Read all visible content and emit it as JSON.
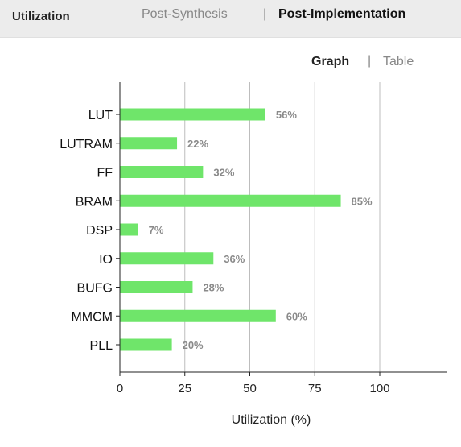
{
  "panel": {
    "title": "Utilization"
  },
  "view_tabs": {
    "post_synthesis": "Post-Synthesis",
    "separator": "|",
    "post_implementation": "Post-Implementation",
    "active": "Post-Implementation"
  },
  "mode_tabs": {
    "graph": "Graph",
    "separator": "|",
    "table": "Table",
    "active": "Graph"
  },
  "colors": {
    "bar": "#6fe56a",
    "header_bg": "#ececec",
    "grid": "#bdbdbd"
  },
  "chart_data": {
    "type": "bar",
    "orientation": "horizontal",
    "categories": [
      "LUT",
      "LUTRAM",
      "FF",
      "BRAM",
      "DSP",
      "IO",
      "BUFG",
      "MMCM",
      "PLL"
    ],
    "values": [
      56,
      22,
      32,
      85,
      7,
      36,
      28,
      60,
      20
    ],
    "value_labels": [
      "56%",
      "22%",
      "32%",
      "85%",
      "7%",
      "36%",
      "28%",
      "60%",
      "20%"
    ],
    "xlabel": "Utilization (%)",
    "ylabel": "",
    "xlim": [
      0,
      125
    ],
    "xticks": [
      0,
      25,
      50,
      75,
      100
    ],
    "grid": true
  }
}
